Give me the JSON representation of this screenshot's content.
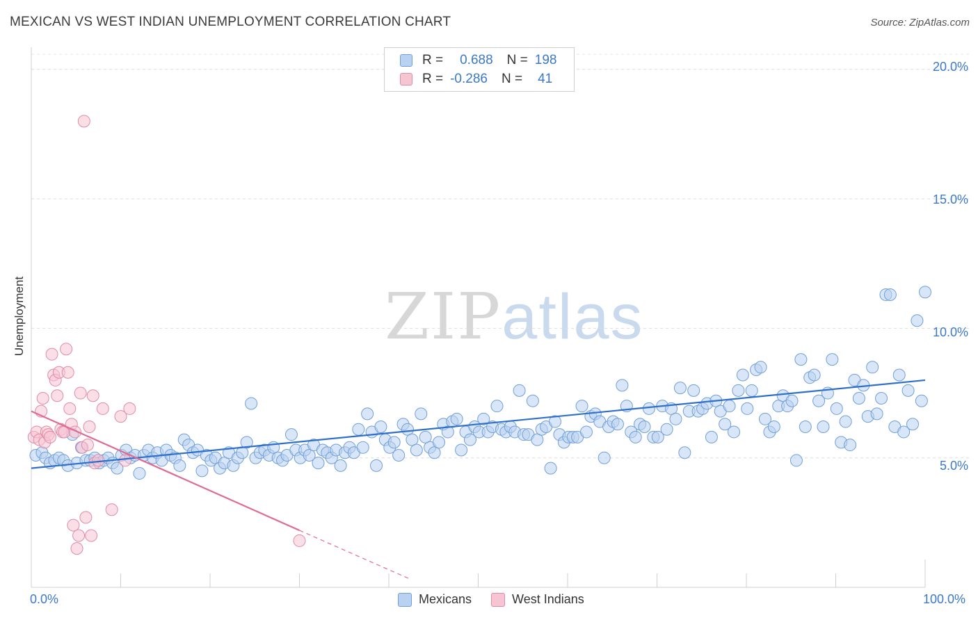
{
  "title": "MEXICAN VS WEST INDIAN UNEMPLOYMENT CORRELATION CHART",
  "source": "Source: ZipAtlas.com",
  "watermark": {
    "part1": "ZIP",
    "part2": "atlas"
  },
  "legend_top": {
    "rows": [
      {
        "r_label": "R =",
        "r_value": "0.688",
        "n_label": "N =",
        "n_value": "198"
      },
      {
        "r_label": "R =",
        "r_value": "-0.286",
        "n_label": "N =",
        "n_value": "41"
      }
    ]
  },
  "legend_bottom": [
    "Mexicans",
    "West Indians"
  ],
  "chart_data": {
    "type": "scatter",
    "title": "MEXICAN VS WEST INDIAN UNEMPLOYMENT CORRELATION CHART",
    "xlabel": "",
    "ylabel": "Unemployment",
    "x_tick_labels": [
      "0.0%",
      "100.0%"
    ],
    "y_tick_labels": [
      "5.0%",
      "10.0%",
      "15.0%",
      "20.0%"
    ],
    "xlim": [
      0,
      100
    ],
    "ylim": [
      0,
      20.8
    ],
    "grid": true,
    "legend_position": "top-center",
    "colors": {
      "Mexicans": "#6f9fd8",
      "West Indians": "#e08aa6",
      "blue_line": "#2f6fcc",
      "pink_line": "#e06a92"
    },
    "series": [
      {
        "name": "Mexicans",
        "r": 0.688,
        "n": 198,
        "trend": {
          "x": [
            0,
            100
          ],
          "y": [
            4.6,
            8.0
          ]
        },
        "points": [
          [
            0.5,
            5.1
          ],
          [
            1.2,
            5.2
          ],
          [
            1.6,
            5.0
          ],
          [
            2.1,
            4.8
          ],
          [
            2.6,
            4.9
          ],
          [
            3.1,
            5.0
          ],
          [
            3.6,
            4.9
          ],
          [
            4.1,
            4.7
          ],
          [
            4.6,
            5.9
          ],
          [
            5.1,
            4.8
          ],
          [
            5.6,
            5.4
          ],
          [
            6.1,
            4.9
          ],
          [
            6.6,
            4.9
          ],
          [
            7.1,
            5.0
          ],
          [
            7.6,
            4.8
          ],
          [
            8.1,
            4.9
          ],
          [
            8.6,
            5.0
          ],
          [
            9.1,
            4.8
          ],
          [
            9.6,
            4.6
          ],
          [
            10.1,
            5.1
          ],
          [
            10.6,
            5.3
          ],
          [
            11.1,
            5.0
          ],
          [
            11.6,
            5.1
          ],
          [
            12.1,
            4.4
          ],
          [
            12.6,
            5.1
          ],
          [
            13.1,
            5.3
          ],
          [
            13.6,
            5.0
          ],
          [
            14.1,
            5.2
          ],
          [
            14.6,
            4.9
          ],
          [
            15.1,
            5.3
          ],
          [
            15.6,
            5.1
          ],
          [
            16.1,
            5.0
          ],
          [
            16.6,
            4.7
          ],
          [
            17.1,
            5.7
          ],
          [
            17.6,
            5.5
          ],
          [
            18.1,
            5.2
          ],
          [
            18.6,
            5.3
          ],
          [
            19.1,
            4.5
          ],
          [
            19.6,
            5.1
          ],
          [
            20.1,
            4.9
          ],
          [
            20.6,
            5.0
          ],
          [
            21.1,
            4.6
          ],
          [
            21.6,
            4.8
          ],
          [
            22.1,
            5.2
          ],
          [
            22.6,
            4.7
          ],
          [
            23.1,
            5.0
          ],
          [
            23.6,
            5.2
          ],
          [
            24.1,
            5.6
          ],
          [
            24.6,
            7.1
          ],
          [
            25.1,
            5.0
          ],
          [
            25.6,
            5.2
          ],
          [
            26.1,
            5.3
          ],
          [
            26.6,
            5.1
          ],
          [
            27.1,
            5.4
          ],
          [
            27.6,
            5.0
          ],
          [
            28.1,
            4.9
          ],
          [
            28.6,
            5.1
          ],
          [
            29.1,
            5.9
          ],
          [
            29.6,
            5.3
          ],
          [
            30.1,
            5.0
          ],
          [
            30.6,
            5.3
          ],
          [
            31.1,
            5.1
          ],
          [
            31.6,
            5.5
          ],
          [
            32.1,
            4.8
          ],
          [
            32.6,
            5.3
          ],
          [
            33.1,
            5.2
          ],
          [
            33.6,
            5.0
          ],
          [
            34.1,
            5.3
          ],
          [
            34.6,
            4.7
          ],
          [
            35.1,
            5.2
          ],
          [
            35.6,
            5.4
          ],
          [
            36.1,
            5.2
          ],
          [
            36.6,
            6.1
          ],
          [
            37.1,
            5.4
          ],
          [
            37.6,
            6.7
          ],
          [
            38.1,
            6.0
          ],
          [
            38.6,
            4.7
          ],
          [
            39.1,
            6.2
          ],
          [
            39.6,
            5.7
          ],
          [
            40.1,
            5.4
          ],
          [
            40.6,
            5.6
          ],
          [
            41.1,
            5.1
          ],
          [
            41.6,
            6.3
          ],
          [
            42.1,
            6.1
          ],
          [
            42.6,
            5.7
          ],
          [
            43.1,
            5.3
          ],
          [
            43.6,
            6.7
          ],
          [
            44.1,
            5.8
          ],
          [
            44.6,
            5.4
          ],
          [
            45.1,
            5.2
          ],
          [
            45.6,
            5.6
          ],
          [
            46.1,
            6.3
          ],
          [
            46.6,
            6.0
          ],
          [
            47.1,
            6.4
          ],
          [
            47.6,
            6.5
          ],
          [
            48.1,
            5.3
          ],
          [
            48.6,
            6.0
          ],
          [
            49.1,
            5.7
          ],
          [
            49.6,
            6.2
          ],
          [
            50.1,
            6.0
          ],
          [
            50.6,
            6.5
          ],
          [
            51.1,
            6.0
          ],
          [
            51.6,
            6.2
          ],
          [
            52.1,
            7.0
          ],
          [
            52.6,
            6.1
          ],
          [
            53.1,
            6.0
          ],
          [
            53.6,
            6.2
          ],
          [
            54.1,
            6.0
          ],
          [
            54.6,
            7.6
          ],
          [
            55.1,
            5.9
          ],
          [
            55.6,
            5.9
          ],
          [
            56.1,
            7.2
          ],
          [
            56.6,
            5.7
          ],
          [
            57.1,
            6.1
          ],
          [
            57.6,
            6.2
          ],
          [
            58.1,
            4.6
          ],
          [
            58.6,
            6.4
          ],
          [
            59.1,
            5.9
          ],
          [
            59.6,
            5.6
          ],
          [
            60.1,
            5.8
          ],
          [
            60.6,
            5.8
          ],
          [
            61.1,
            5.8
          ],
          [
            61.6,
            7.0
          ],
          [
            62.1,
            6.0
          ],
          [
            62.6,
            6.6
          ],
          [
            63.1,
            6.7
          ],
          [
            63.6,
            6.4
          ],
          [
            64.1,
            5.0
          ],
          [
            64.6,
            6.2
          ],
          [
            65.1,
            6.4
          ],
          [
            65.6,
            6.3
          ],
          [
            66.1,
            7.8
          ],
          [
            66.6,
            7.0
          ],
          [
            67.1,
            6.0
          ],
          [
            67.6,
            5.8
          ],
          [
            68.1,
            6.3
          ],
          [
            68.6,
            6.2
          ],
          [
            69.1,
            6.9
          ],
          [
            69.6,
            5.8
          ],
          [
            70.1,
            5.8
          ],
          [
            70.6,
            7.0
          ],
          [
            71.1,
            6.1
          ],
          [
            71.6,
            6.9
          ],
          [
            72.1,
            6.5
          ],
          [
            72.6,
            7.7
          ],
          [
            73.1,
            5.2
          ],
          [
            73.6,
            6.8
          ],
          [
            74.1,
            7.6
          ],
          [
            74.6,
            6.8
          ],
          [
            75.1,
            6.9
          ],
          [
            75.6,
            7.1
          ],
          [
            76.1,
            5.8
          ],
          [
            76.6,
            7.2
          ],
          [
            77.1,
            6.8
          ],
          [
            77.6,
            6.3
          ],
          [
            78.1,
            7.0
          ],
          [
            78.6,
            6.0
          ],
          [
            79.1,
            7.6
          ],
          [
            79.6,
            8.2
          ],
          [
            80.1,
            6.9
          ],
          [
            80.6,
            7.6
          ],
          [
            81.1,
            8.4
          ],
          [
            81.6,
            8.5
          ],
          [
            82.1,
            6.5
          ],
          [
            82.6,
            6.0
          ],
          [
            83.1,
            6.2
          ],
          [
            83.6,
            7.0
          ],
          [
            84.1,
            7.4
          ],
          [
            84.6,
            7.0
          ],
          [
            85.1,
            7.2
          ],
          [
            85.6,
            4.9
          ],
          [
            86.1,
            8.8
          ],
          [
            86.6,
            6.2
          ],
          [
            87.1,
            8.1
          ],
          [
            87.6,
            8.2
          ],
          [
            88.1,
            7.2
          ],
          [
            88.6,
            6.2
          ],
          [
            89.1,
            7.5
          ],
          [
            89.6,
            8.8
          ],
          [
            90.1,
            6.9
          ],
          [
            90.6,
            5.6
          ],
          [
            91.1,
            6.4
          ],
          [
            91.6,
            5.5
          ],
          [
            92.1,
            8.0
          ],
          [
            92.6,
            7.3
          ],
          [
            93.1,
            7.8
          ],
          [
            93.6,
            6.6
          ],
          [
            94.1,
            8.5
          ],
          [
            94.6,
            6.7
          ],
          [
            95.1,
            7.3
          ],
          [
            95.6,
            11.3
          ],
          [
            96.1,
            11.3
          ],
          [
            96.6,
            6.2
          ],
          [
            97.1,
            8.2
          ],
          [
            97.6,
            6.0
          ],
          [
            98.1,
            7.6
          ],
          [
            98.6,
            6.3
          ],
          [
            99.1,
            10.3
          ],
          [
            99.6,
            7.2
          ],
          [
            100,
            11.4
          ]
        ]
      },
      {
        "name": "West Indians",
        "r": -0.286,
        "n": 41,
        "trend": {
          "x": [
            0,
            30
          ],
          "y": [
            6.8,
            2.2
          ],
          "dashed_to": {
            "x": 42.5,
            "y": 0.3
          }
        },
        "points": [
          [
            0.3,
            5.8
          ],
          [
            0.6,
            6.0
          ],
          [
            0.9,
            5.7
          ],
          [
            1.1,
            6.8
          ],
          [
            1.3,
            7.3
          ],
          [
            1.5,
            5.6
          ],
          [
            1.7,
            6.0
          ],
          [
            1.9,
            5.9
          ],
          [
            2.1,
            5.8
          ],
          [
            2.3,
            9.0
          ],
          [
            2.5,
            8.2
          ],
          [
            2.7,
            8.0
          ],
          [
            2.9,
            7.4
          ],
          [
            3.1,
            8.3
          ],
          [
            3.3,
            6.1
          ],
          [
            3.5,
            6.0
          ],
          [
            3.7,
            6.0
          ],
          [
            3.9,
            9.2
          ],
          [
            4.1,
            8.3
          ],
          [
            4.3,
            6.9
          ],
          [
            4.5,
            6.3
          ],
          [
            4.7,
            2.4
          ],
          [
            4.9,
            6.0
          ],
          [
            5.1,
            1.5
          ],
          [
            5.3,
            2.0
          ],
          [
            5.5,
            7.5
          ],
          [
            5.7,
            5.4
          ],
          [
            5.9,
            18.0
          ],
          [
            6.1,
            2.7
          ],
          [
            6.3,
            5.5
          ],
          [
            6.5,
            6.2
          ],
          [
            6.7,
            2.0
          ],
          [
            6.9,
            7.4
          ],
          [
            7.1,
            4.8
          ],
          [
            7.5,
            4.9
          ],
          [
            8.0,
            6.9
          ],
          [
            9.0,
            3.0
          ],
          [
            10.0,
            6.6
          ],
          [
            10.5,
            4.9
          ],
          [
            11.0,
            6.9
          ],
          [
            30.0,
            1.8
          ]
        ]
      }
    ]
  }
}
